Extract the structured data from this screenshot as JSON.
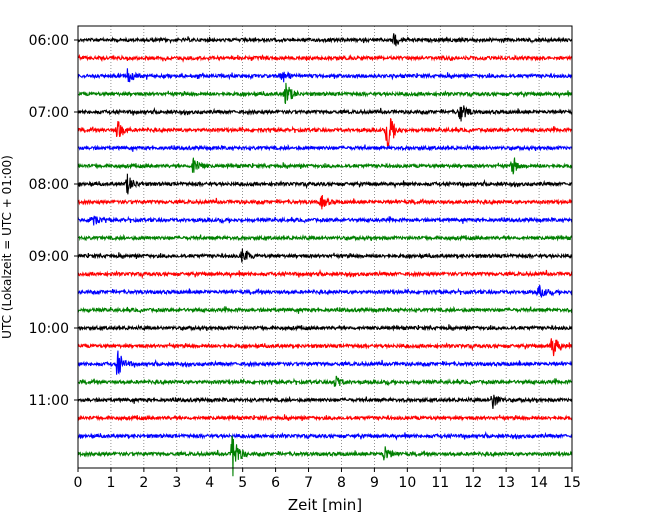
{
  "chart_data": {
    "type": "line",
    "title": "",
    "xlabel": "Zeit  [min]",
    "ylabel": "UTC (Lokalzeit = UTC + 01:00)",
    "xlim": [
      0,
      15
    ],
    "x_ticks": [
      0,
      1,
      2,
      3,
      4,
      5,
      6,
      7,
      8,
      9,
      10,
      11,
      12,
      13,
      14,
      15
    ],
    "x_tick_labels": [
      "0",
      "1",
      "2",
      "3",
      "4",
      "5",
      "6",
      "7",
      "8",
      "9",
      "10",
      "11",
      "12",
      "13",
      "14",
      "15"
    ],
    "y_tick_labels": [
      "06:00",
      "07:00",
      "08:00",
      "09:00",
      "10:00",
      "11:00"
    ],
    "y_tick_rows": [
      0,
      4,
      8,
      12,
      16,
      20
    ],
    "x_grid": "dotted",
    "color_cycle": [
      "#000000",
      "#ff0000",
      "#0000ff",
      "#008000"
    ],
    "traces": [
      {
        "start": "06:00",
        "events": [
          {
            "t": 9.6,
            "amp": 1.0
          }
        ]
      },
      {
        "start": "06:15",
        "events": []
      },
      {
        "start": "06:30",
        "events": [
          {
            "t": 1.5,
            "amp": 1.0
          },
          {
            "t": 6.2,
            "amp": 1.2
          }
        ]
      },
      {
        "start": "06:45",
        "events": [
          {
            "t": 6.3,
            "amp": 2.0
          }
        ]
      },
      {
        "start": "07:00",
        "events": [
          {
            "t": 11.6,
            "amp": 1.6
          }
        ]
      },
      {
        "start": "07:15",
        "events": [
          {
            "t": 1.2,
            "amp": 1.6
          },
          {
            "t": 9.4,
            "amp": 3.0
          }
        ]
      },
      {
        "start": "07:30",
        "events": []
      },
      {
        "start": "07:45",
        "events": [
          {
            "t": 3.5,
            "amp": 1.5
          },
          {
            "t": 13.2,
            "amp": 1.2
          }
        ]
      },
      {
        "start": "08:00",
        "events": [
          {
            "t": 1.5,
            "amp": 1.4
          }
        ]
      },
      {
        "start": "08:15",
        "events": [
          {
            "t": 7.4,
            "amp": 0.9
          }
        ]
      },
      {
        "start": "08:30",
        "events": [
          {
            "t": 0.4,
            "amp": 1.2
          }
        ]
      },
      {
        "start": "08:45",
        "events": []
      },
      {
        "start": "09:00",
        "events": [
          {
            "t": 5.0,
            "amp": 1.2
          }
        ]
      },
      {
        "start": "09:15",
        "events": []
      },
      {
        "start": "09:30",
        "events": [
          {
            "t": 14.0,
            "amp": 1.0
          }
        ]
      },
      {
        "start": "09:45",
        "events": []
      },
      {
        "start": "10:00",
        "events": []
      },
      {
        "start": "10:15",
        "events": [
          {
            "t": 14.4,
            "amp": 1.8
          }
        ]
      },
      {
        "start": "10:30",
        "events": [
          {
            "t": 1.2,
            "amp": 2.0
          }
        ]
      },
      {
        "start": "10:45",
        "events": [
          {
            "t": 7.8,
            "amp": 1.0
          }
        ]
      },
      {
        "start": "11:00",
        "events": [
          {
            "t": 12.6,
            "amp": 1.2
          }
        ]
      },
      {
        "start": "11:15",
        "events": []
      },
      {
        "start": "11:30",
        "events": []
      },
      {
        "start": "11:45",
        "events": [
          {
            "t": 4.7,
            "amp": 3.5
          },
          {
            "t": 9.3,
            "amp": 1.2
          }
        ]
      }
    ]
  }
}
